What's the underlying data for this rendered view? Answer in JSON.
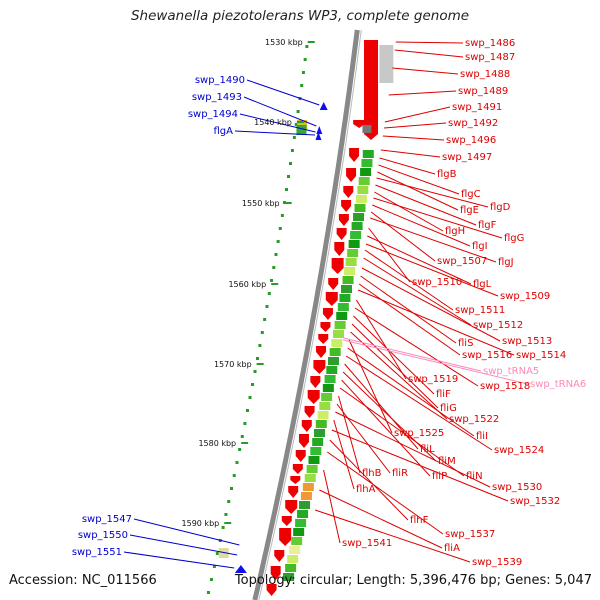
{
  "title": "Shewanella piezotolerans WP3, complete genome",
  "footer": {
    "accession": "Accession: NC_011566",
    "topology": "Topology: circular; Length: 5,396,476 bp; Genes: 5,047"
  },
  "colors": {
    "forward_label": "#0000cc",
    "reverse_label": "#dd0000",
    "rna_label": "#ff88bb",
    "forward_gene": "#1010ee",
    "reverse_gene": "#ee0000",
    "backbone": "#888888",
    "gc_mark": "#2a9a2a"
  },
  "kbp_ticks": [
    "1530 kbp",
    "1540 kbp",
    "1550 kbp",
    "1560 kbp",
    "1570 kbp",
    "1580 kbp",
    "1590 kbp"
  ],
  "forward_labels": [
    "swp_1490",
    "swp_1493",
    "swp_1494",
    "flgA",
    "swp_1547",
    "swp_1550",
    "swp_1551"
  ],
  "reverse_labels": [
    "swp_1486",
    "swp_1487",
    "swp_1488",
    "swp_1489",
    "swp_1491",
    "swp_1492",
    "swp_1496",
    "swp_1497",
    "flgB",
    "flgC",
    "flgE",
    "flgD",
    "flgF",
    "flgH",
    "flgG",
    "flgI",
    "swp_1507",
    "flgJ",
    "swp_1510",
    "flgL",
    "swp_1509",
    "swp_1511",
    "swp_1512",
    "swp_1513",
    "fliS",
    "swp_1516",
    "swp_1514",
    "swp_1519",
    "swp_1518",
    "fliF",
    "fliG",
    "swp_1522",
    "swp_1525",
    "fliI",
    "swp_1524",
    "fliL",
    "fliM",
    "fliP",
    "fliN",
    "flhB",
    "fliR",
    "swp_1530",
    "flhA",
    "swp_1532",
    "flhF",
    "swp_1537",
    "swp_1541",
    "fliA",
    "swp_1539"
  ],
  "rna_labels": [
    "swp_tRNA5",
    "swp_tRNA6"
  ]
}
